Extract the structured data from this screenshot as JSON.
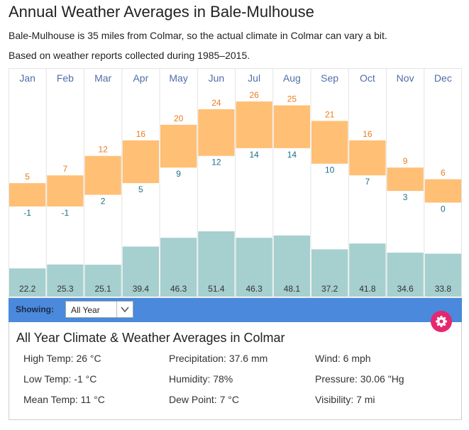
{
  "page": {
    "title": "Annual Weather Averages in Bale-Mulhouse",
    "subtitle1": "Bale-Mulhouse is 35 miles from Colmar, so the actual climate in Colmar can vary a bit.",
    "subtitle2": "Based on weather reports collected during 1985–2015."
  },
  "chart_data": {
    "type": "bar",
    "categories": [
      "Jan",
      "Feb",
      "Mar",
      "Apr",
      "May",
      "Jun",
      "Jul",
      "Aug",
      "Sep",
      "Oct",
      "Nov",
      "Dec"
    ],
    "series": [
      {
        "name": "High Temp (°C)",
        "values": [
          5,
          7,
          12,
          16,
          20,
          24,
          26,
          25,
          21,
          16,
          9,
          6
        ]
      },
      {
        "name": "Low Temp (°C)",
        "values": [
          -1,
          -1,
          2,
          5,
          9,
          12,
          14,
          14,
          10,
          7,
          3,
          0
        ]
      },
      {
        "name": "Precipitation (mm)",
        "values": [
          22.2,
          25.3,
          25.1,
          39.4,
          46.3,
          51.4,
          46.3,
          48.1,
          37.2,
          41.8,
          34.6,
          33.8
        ]
      }
    ],
    "temp_range": [
      -5,
      30
    ],
    "precip_range": [
      0,
      105
    ],
    "colors": {
      "temp": "#ffbf75",
      "high_label": "#e67e22",
      "low_label": "#1c6f8c",
      "precip": "#a6cfcf",
      "month": "#4f6ea8",
      "grid": "#e4e4e4"
    }
  },
  "toolbar": {
    "showing_label": "Showing:",
    "selected": "All Year",
    "icons": {
      "dropdown": "chevron-down-icon",
      "settings": "gear-icon"
    },
    "accent": "#4a89dc",
    "gear_color": "#e6276f"
  },
  "panel": {
    "title": "All Year Climate & Weather Averages in Colmar",
    "stats": [
      "High Temp: 26 °C",
      "Precipitation: 37.6 mm",
      "Wind: 6 mph",
      "Low Temp: -1 °C",
      "Humidity: 78%",
      "Pressure: 30.06 \"Hg",
      "Mean Temp: 11 °C",
      "Dew Point: 7 °C",
      "Visibility: 7 mi"
    ]
  }
}
